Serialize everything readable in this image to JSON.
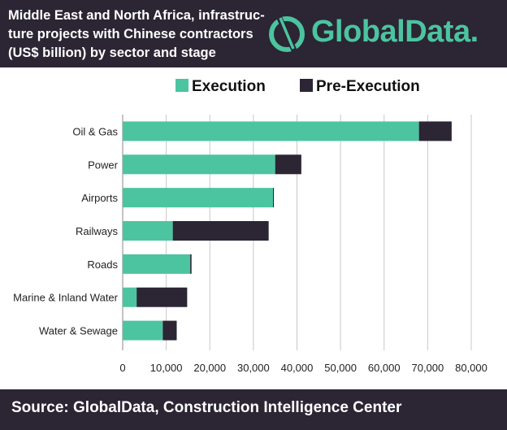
{
  "header": {
    "title_lines": [
      "Middle East and North Africa, infrastruc-",
      "ture projects with Chinese contractors",
      "(US$ billion) by sector and stage"
    ]
  },
  "logo": {
    "text": "GlobalData."
  },
  "footer": {
    "source": "Source:  GlobalData, Construction Intelligence Center"
  },
  "colors": {
    "execution": "#4cc4a0",
    "pre_execution": "#2b2534",
    "header_bg": "#2b2534",
    "logo_accent": "#4cc4a0"
  },
  "chart_data": {
    "type": "bar",
    "orientation": "horizontal",
    "stacked": true,
    "categories": [
      "Oil & Gas",
      "Power",
      "Airports",
      "Railways",
      "Roads",
      "Marine & Inland Water",
      "Water & Sewage"
    ],
    "series": [
      {
        "name": "Execution",
        "color": "#4cc4a0",
        "values": [
          68000,
          35000,
          34500,
          11500,
          15500,
          3200,
          9200
        ]
      },
      {
        "name": "Pre-Execution",
        "color": "#2b2534",
        "values": [
          7500,
          6000,
          200,
          22000,
          300,
          11600,
          3200
        ]
      }
    ],
    "xlim": [
      0,
      80000
    ],
    "xticks": [
      "0",
      "10,000",
      "20,000",
      "30,000",
      "40,000",
      "50,000",
      "60,000",
      "70,000",
      "80,000"
    ],
    "grid": true,
    "legend": "top"
  }
}
